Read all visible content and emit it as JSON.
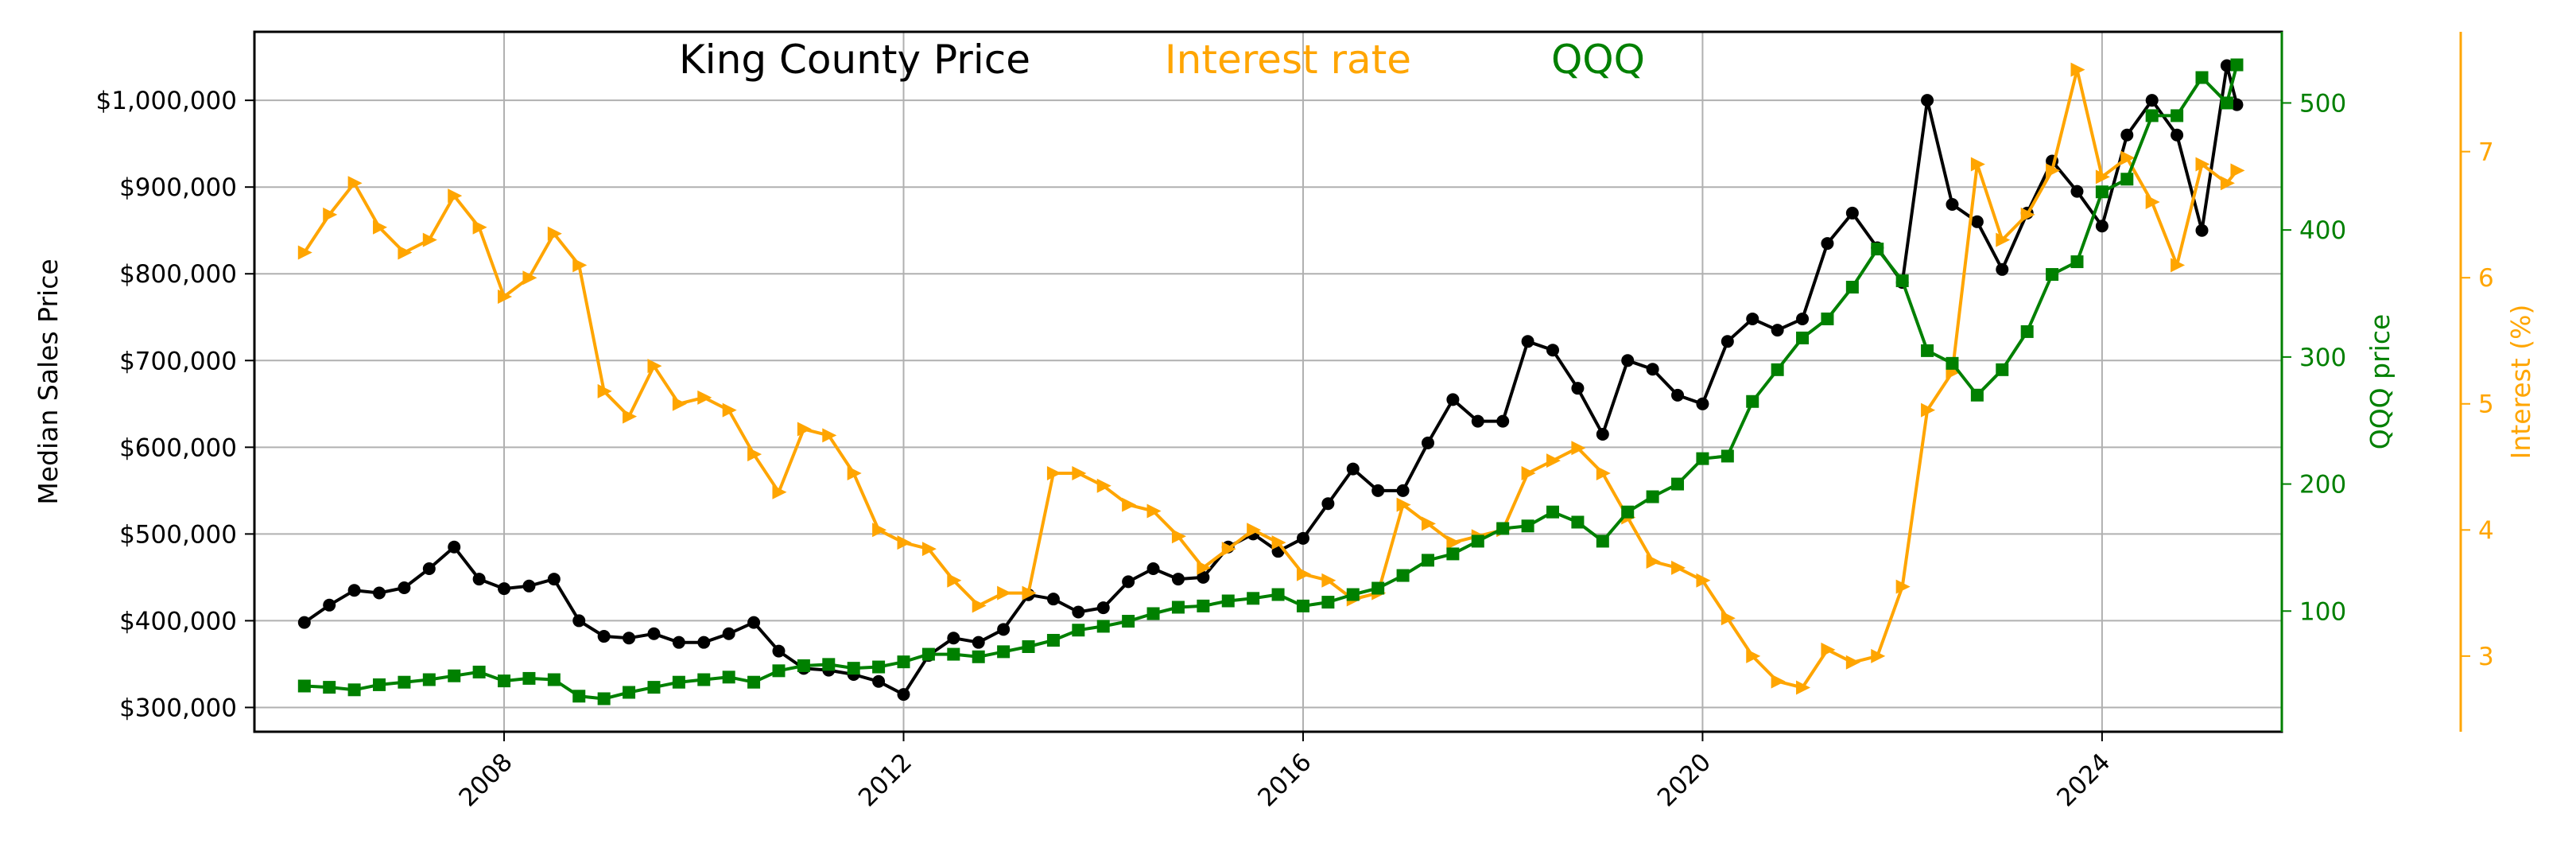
{
  "chart_data": {
    "type": "line",
    "title": "",
    "legend": {
      "placement": "top-center",
      "entries": [
        {
          "label": "King County Price",
          "color": "#000000"
        },
        {
          "label": "Interest rate",
          "color": "#FFA500"
        },
        {
          "label": "QQQ",
          "color": "#008000"
        }
      ]
    },
    "grid": true,
    "x_axis": {
      "label": "",
      "range": [
        2005.5,
        2025.8
      ],
      "ticks": [
        2008,
        2012,
        2016,
        2020,
        2024
      ],
      "tick_labels": [
        "2008",
        "2012",
        "2016",
        "2020",
        "2024"
      ],
      "tick_rotation_deg": 45
    },
    "y_axes": [
      {
        "id": "price",
        "side": "left",
        "label": "Median Sales Price",
        "color": "#000000",
        "range": [
          272000,
          1079000
        ],
        "ticks": [
          300000,
          400000,
          500000,
          600000,
          700000,
          800000,
          900000,
          1000000
        ],
        "tick_labels": [
          "$300,000",
          "$400,000",
          "$500,000",
          "$600,000",
          "$700,000",
          "$800,000",
          "$900,000",
          "$1,000,000"
        ]
      },
      {
        "id": "qqq",
        "side": "right",
        "label": "QQQ price",
        "color": "#008000",
        "range": [
          5,
          556
        ],
        "ticks": [
          100,
          200,
          300,
          400,
          500
        ],
        "tick_labels": [
          "100",
          "200",
          "300",
          "400",
          "500"
        ]
      },
      {
        "id": "rate",
        "side": "right-outer",
        "label": "Interest (%)",
        "color": "#FFA500",
        "range": [
          2.4,
          7.95
        ],
        "ticks": [
          3,
          4,
          5,
          6,
          7
        ],
        "tick_labels": [
          "3",
          "4",
          "5",
          "6",
          "7"
        ]
      }
    ],
    "series": [
      {
        "name": "King County Price",
        "axis": "price",
        "color": "#000000",
        "marker": "circle",
        "points": [
          [
            2006.0,
            398000
          ],
          [
            2006.25,
            418000
          ],
          [
            2006.5,
            435000
          ],
          [
            2006.75,
            432000
          ],
          [
            2007.0,
            438000
          ],
          [
            2007.25,
            460000
          ],
          [
            2007.5,
            485000
          ],
          [
            2007.75,
            448000
          ],
          [
            2008.0,
            437000
          ],
          [
            2008.25,
            440000
          ],
          [
            2008.5,
            448000
          ],
          [
            2008.75,
            400000
          ],
          [
            2009.0,
            382000
          ],
          [
            2009.25,
            380000
          ],
          [
            2009.5,
            385000
          ],
          [
            2009.75,
            375000
          ],
          [
            2010.0,
            375000
          ],
          [
            2010.25,
            385000
          ],
          [
            2010.5,
            398000
          ],
          [
            2010.75,
            365000
          ],
          [
            2011.0,
            345000
          ],
          [
            2011.25,
            343000
          ],
          [
            2011.5,
            338000
          ],
          [
            2011.75,
            330000
          ],
          [
            2012.0,
            315000
          ],
          [
            2012.25,
            360000
          ],
          [
            2012.5,
            380000
          ],
          [
            2012.75,
            375000
          ],
          [
            2013.0,
            390000
          ],
          [
            2013.25,
            430000
          ],
          [
            2013.5,
            425000
          ],
          [
            2013.75,
            410000
          ],
          [
            2014.0,
            415000
          ],
          [
            2014.25,
            445000
          ],
          [
            2014.5,
            460000
          ],
          [
            2014.75,
            448000
          ],
          [
            2015.0,
            450000
          ],
          [
            2015.25,
            485000
          ],
          [
            2015.5,
            500000
          ],
          [
            2015.75,
            480000
          ],
          [
            2016.0,
            495000
          ],
          [
            2016.25,
            535000
          ],
          [
            2016.5,
            575000
          ],
          [
            2016.75,
            550000
          ],
          [
            2017.0,
            550000
          ],
          [
            2017.25,
            605000
          ],
          [
            2017.5,
            655000
          ],
          [
            2017.75,
            630000
          ],
          [
            2018.0,
            630000
          ],
          [
            2018.25,
            722000
          ],
          [
            2018.5,
            712000
          ],
          [
            2018.75,
            668000
          ],
          [
            2019.0,
            615000
          ],
          [
            2019.25,
            700000
          ],
          [
            2019.5,
            690000
          ],
          [
            2019.75,
            660000
          ],
          [
            2020.0,
            650000
          ],
          [
            2020.25,
            722000
          ],
          [
            2020.5,
            748000
          ],
          [
            2020.75,
            735000
          ],
          [
            2021.0,
            748000
          ],
          [
            2021.25,
            835000
          ],
          [
            2021.5,
            870000
          ],
          [
            2021.75,
            830000
          ],
          [
            2022.0,
            790000
          ],
          [
            2022.25,
            1000000
          ],
          [
            2022.5,
            880000
          ],
          [
            2022.75,
            860000
          ],
          [
            2023.0,
            805000
          ],
          [
            2023.25,
            870000
          ],
          [
            2023.5,
            930000
          ],
          [
            2023.75,
            895000
          ],
          [
            2024.0,
            855000
          ],
          [
            2024.25,
            960000
          ],
          [
            2024.5,
            1000000
          ],
          [
            2024.75,
            960000
          ],
          [
            2025.0,
            850000
          ],
          [
            2025.25,
            1040000
          ],
          [
            2025.35,
            995000
          ]
        ]
      },
      {
        "name": "Interest rate",
        "axis": "rate",
        "color": "#FFA500",
        "marker": "triangle-right",
        "points": [
          [
            2006.0,
            6.2
          ],
          [
            2006.25,
            6.5
          ],
          [
            2006.5,
            6.75
          ],
          [
            2006.75,
            6.4
          ],
          [
            2007.0,
            6.2
          ],
          [
            2007.25,
            6.3
          ],
          [
            2007.5,
            6.65
          ],
          [
            2007.75,
            6.4
          ],
          [
            2008.0,
            5.85
          ],
          [
            2008.25,
            6.0
          ],
          [
            2008.5,
            6.35
          ],
          [
            2008.75,
            6.1
          ],
          [
            2009.0,
            5.1
          ],
          [
            2009.25,
            4.9
          ],
          [
            2009.5,
            5.3
          ],
          [
            2009.75,
            5.0
          ],
          [
            2010.0,
            5.05
          ],
          [
            2010.25,
            4.95
          ],
          [
            2010.5,
            4.6
          ],
          [
            2010.75,
            4.3
          ],
          [
            2011.0,
            4.8
          ],
          [
            2011.25,
            4.75
          ],
          [
            2011.5,
            4.45
          ],
          [
            2011.75,
            4.0
          ],
          [
            2012.0,
            3.9
          ],
          [
            2012.25,
            3.85
          ],
          [
            2012.5,
            3.6
          ],
          [
            2012.75,
            3.4
          ],
          [
            2013.0,
            3.5
          ],
          [
            2013.25,
            3.5
          ],
          [
            2013.5,
            4.45
          ],
          [
            2013.75,
            4.45
          ],
          [
            2014.0,
            4.35
          ],
          [
            2014.25,
            4.2
          ],
          [
            2014.5,
            4.15
          ],
          [
            2014.75,
            3.95
          ],
          [
            2015.0,
            3.7
          ],
          [
            2015.25,
            3.85
          ],
          [
            2015.5,
            4.0
          ],
          [
            2015.75,
            3.9
          ],
          [
            2016.0,
            3.65
          ],
          [
            2016.25,
            3.6
          ],
          [
            2016.5,
            3.45
          ],
          [
            2016.75,
            3.5
          ],
          [
            2017.0,
            4.2
          ],
          [
            2017.25,
            4.05
          ],
          [
            2017.5,
            3.9
          ],
          [
            2017.75,
            3.95
          ],
          [
            2018.0,
            4.0
          ],
          [
            2018.25,
            4.45
          ],
          [
            2018.5,
            4.55
          ],
          [
            2018.75,
            4.65
          ],
          [
            2019.0,
            4.45
          ],
          [
            2019.25,
            4.1
          ],
          [
            2019.5,
            3.75
          ],
          [
            2019.75,
            3.7
          ],
          [
            2020.0,
            3.6
          ],
          [
            2020.25,
            3.3
          ],
          [
            2020.5,
            3.0
          ],
          [
            2020.75,
            2.8
          ],
          [
            2021.0,
            2.75
          ],
          [
            2021.25,
            3.05
          ],
          [
            2021.5,
            2.95
          ],
          [
            2021.75,
            3.0
          ],
          [
            2022.0,
            3.55
          ],
          [
            2022.25,
            4.95
          ],
          [
            2022.5,
            5.25
          ],
          [
            2022.75,
            6.9
          ],
          [
            2023.0,
            6.3
          ],
          [
            2023.25,
            6.5
          ],
          [
            2023.5,
            6.85
          ],
          [
            2023.75,
            7.65
          ],
          [
            2024.0,
            6.8
          ],
          [
            2024.25,
            6.95
          ],
          [
            2024.5,
            6.6
          ],
          [
            2024.75,
            6.1
          ],
          [
            2025.0,
            6.9
          ],
          [
            2025.25,
            6.75
          ],
          [
            2025.35,
            6.85
          ]
        ]
      },
      {
        "name": "QQQ",
        "axis": "qqq",
        "color": "#008000",
        "marker": "square",
        "points": [
          [
            2006.0,
            41
          ],
          [
            2006.25,
            40
          ],
          [
            2006.5,
            38
          ],
          [
            2006.75,
            42
          ],
          [
            2007.0,
            44
          ],
          [
            2007.25,
            46
          ],
          [
            2007.5,
            49
          ],
          [
            2007.75,
            52
          ],
          [
            2008.0,
            45
          ],
          [
            2008.25,
            47
          ],
          [
            2008.5,
            46
          ],
          [
            2008.75,
            33
          ],
          [
            2009.0,
            31
          ],
          [
            2009.25,
            36
          ],
          [
            2009.5,
            40
          ],
          [
            2009.75,
            44
          ],
          [
            2010.0,
            46
          ],
          [
            2010.25,
            48
          ],
          [
            2010.5,
            44
          ],
          [
            2010.75,
            53
          ],
          [
            2011.0,
            57
          ],
          [
            2011.25,
            58
          ],
          [
            2011.5,
            55
          ],
          [
            2011.75,
            56
          ],
          [
            2012.0,
            60
          ],
          [
            2012.25,
            66
          ],
          [
            2012.5,
            66
          ],
          [
            2012.75,
            64
          ],
          [
            2013.0,
            68
          ],
          [
            2013.25,
            72
          ],
          [
            2013.5,
            77
          ],
          [
            2013.75,
            85
          ],
          [
            2014.0,
            88
          ],
          [
            2014.25,
            92
          ],
          [
            2014.5,
            98
          ],
          [
            2014.75,
            103
          ],
          [
            2015.0,
            104
          ],
          [
            2015.25,
            108
          ],
          [
            2015.5,
            110
          ],
          [
            2015.75,
            113
          ],
          [
            2016.0,
            104
          ],
          [
            2016.25,
            107
          ],
          [
            2016.5,
            113
          ],
          [
            2016.75,
            118
          ],
          [
            2017.0,
            128
          ],
          [
            2017.25,
            140
          ],
          [
            2017.5,
            145
          ],
          [
            2017.75,
            155
          ],
          [
            2018.0,
            165
          ],
          [
            2018.25,
            167
          ],
          [
            2018.5,
            178
          ],
          [
            2018.75,
            170
          ],
          [
            2019.0,
            155
          ],
          [
            2019.25,
            178
          ],
          [
            2019.5,
            190
          ],
          [
            2019.75,
            200
          ],
          [
            2020.0,
            220
          ],
          [
            2020.25,
            222
          ],
          [
            2020.5,
            265
          ],
          [
            2020.75,
            290
          ],
          [
            2021.0,
            315
          ],
          [
            2021.25,
            330
          ],
          [
            2021.5,
            355
          ],
          [
            2021.75,
            385
          ],
          [
            2022.0,
            360
          ],
          [
            2022.25,
            305
          ],
          [
            2022.5,
            295
          ],
          [
            2022.75,
            270
          ],
          [
            2023.0,
            290
          ],
          [
            2023.25,
            320
          ],
          [
            2023.5,
            365
          ],
          [
            2023.75,
            375
          ],
          [
            2024.0,
            430
          ],
          [
            2024.25,
            440
          ],
          [
            2024.5,
            490
          ],
          [
            2024.75,
            490
          ],
          [
            2025.0,
            520
          ],
          [
            2025.25,
            500
          ],
          [
            2025.35,
            530
          ]
        ]
      }
    ]
  }
}
